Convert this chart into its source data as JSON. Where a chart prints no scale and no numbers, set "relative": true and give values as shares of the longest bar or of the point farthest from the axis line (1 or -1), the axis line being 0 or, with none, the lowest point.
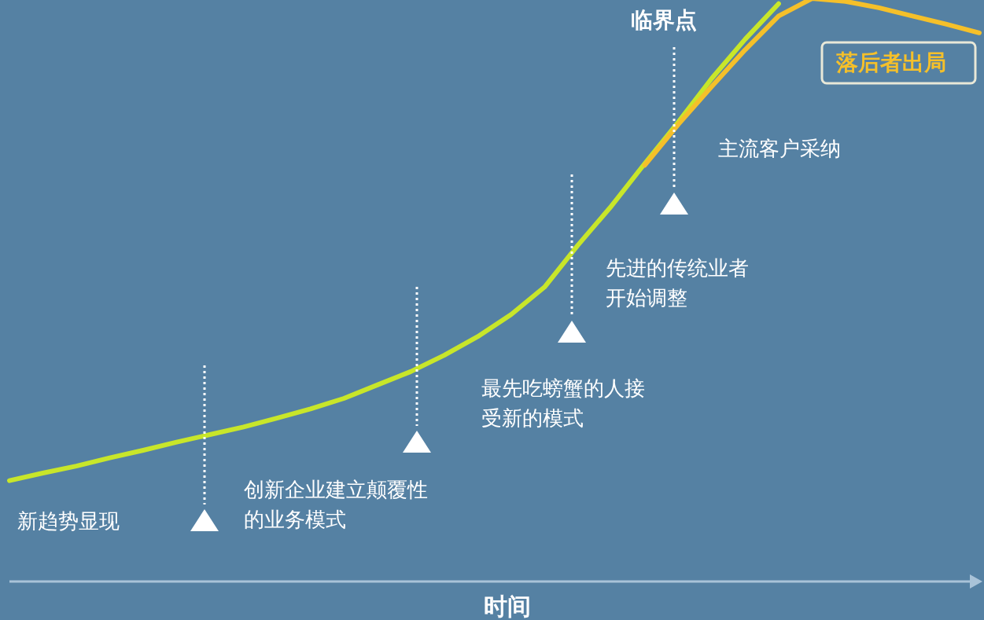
{
  "chart_data": {
    "type": "line",
    "relative": true,
    "xlabel": "时间",
    "categories": [
      null,
      null,
      null,
      null,
      null,
      null,
      null,
      null,
      null,
      null,
      null,
      null,
      null,
      null,
      null,
      null,
      null,
      null,
      null,
      null,
      null,
      null,
      null,
      null,
      null,
      null,
      null,
      null,
      null,
      null
    ],
    "series": [
      {
        "color": "#c8e62a",
        "values": [
          0.173,
          0.186,
          0.198,
          0.212,
          0.225,
          0.239,
          0.252,
          0.265,
          0.28,
          0.296,
          0.314,
          0.337,
          0.36,
          0.388,
          0.42,
          0.458,
          0.505,
          0.577,
          0.644,
          0.717,
          0.788,
          0.863,
          0.93,
          0.991,
          null,
          null,
          null,
          null,
          null,
          null
        ]
      },
      {
        "color": "#f5c02a",
        "values": [
          null,
          null,
          null,
          null,
          null,
          null,
          null,
          null,
          null,
          null,
          null,
          null,
          null,
          null,
          null,
          null,
          null,
          null,
          null,
          0.714,
          0.784,
          0.849,
          0.912,
          0.97,
          1,
          0.995,
          0.984,
          0.97,
          0.956,
          0.941
        ]
      }
    ],
    "annotations": [
      "新趋势显现",
      "创新企业建立颠覆性的业务模式",
      "最先吃螃蟹的人接受新的模式",
      "先进的传统业者开始调整",
      "临界点",
      "主流客户采纳",
      "落后者出局"
    ]
  }
}
